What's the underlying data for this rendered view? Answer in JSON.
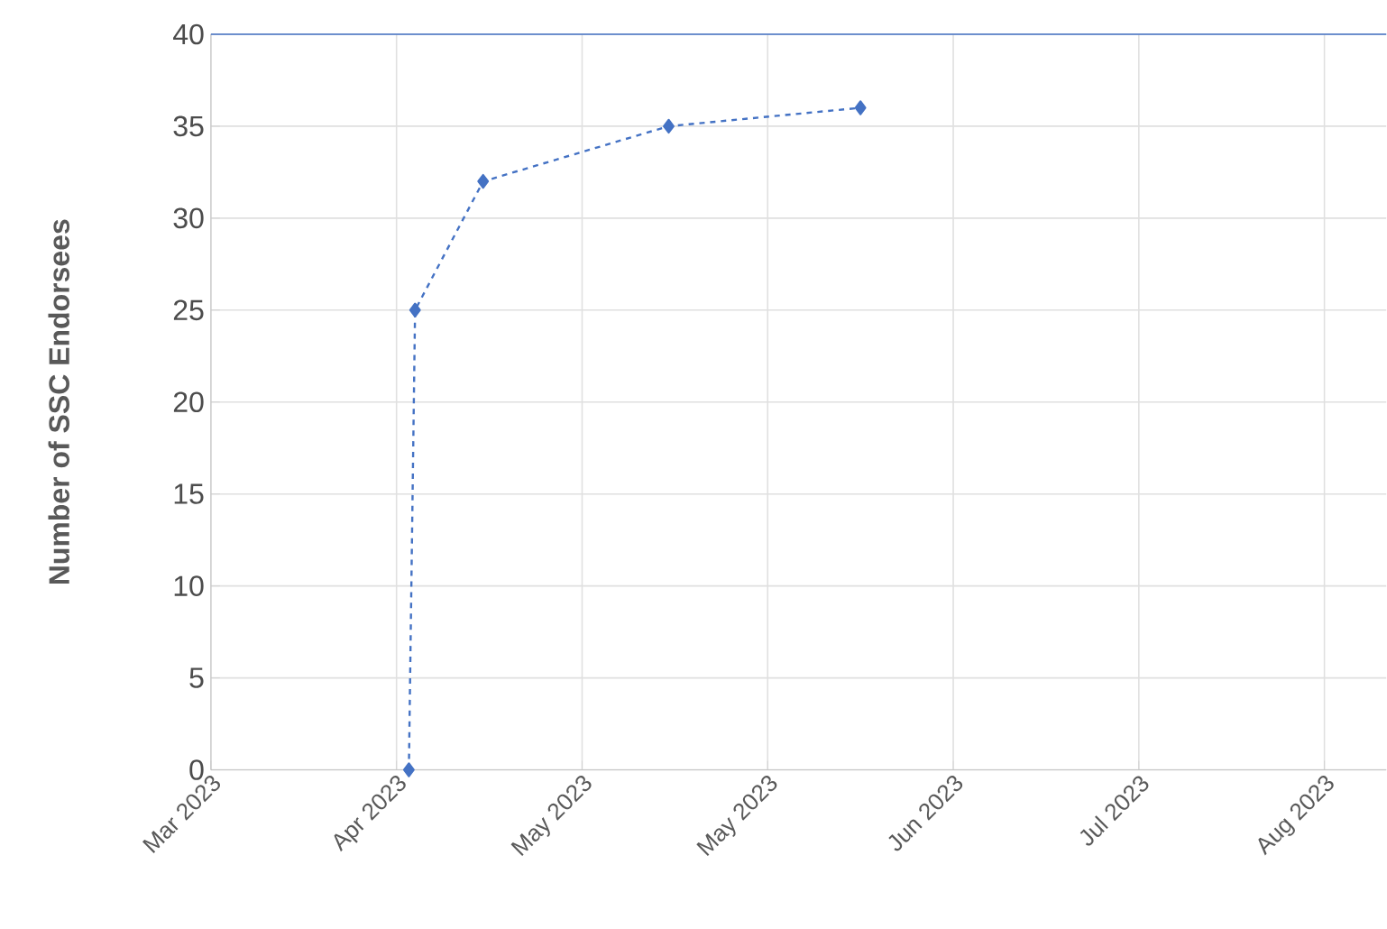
{
  "chart_data": {
    "type": "line",
    "ylabel": "Number of SSC Endorsees",
    "x": [
      "2023-04-03",
      "2023-04-04",
      "2023-04-15",
      "2023-05-15",
      "2023-06-15"
    ],
    "series": [
      {
        "color": "#4472c4",
        "values": [
          0,
          25,
          32,
          35,
          36
        ]
      }
    ],
    "xlim": [
      "2023-03-02",
      "2023-09-08"
    ],
    "xticks": [
      {
        "value": "2023-03-02",
        "label": "Mar 2023"
      },
      {
        "value": "2023-04-01",
        "label": "Apr 2023"
      },
      {
        "value": "2023-05-01",
        "label": "May 2023"
      },
      {
        "value": "2023-05-31",
        "label": "May 2023"
      },
      {
        "value": "2023-06-30",
        "label": "Jun 2023"
      },
      {
        "value": "2023-07-30",
        "label": "Jul 2023"
      },
      {
        "value": "2023-08-29",
        "label": "Aug 2023"
      }
    ],
    "ylim": [
      0,
      40
    ],
    "yticks": [
      0,
      5,
      10,
      15,
      20,
      25,
      30,
      35,
      40
    ],
    "ref_lines": [
      {
        "axis": "y",
        "value": 40,
        "color": "#4472c4"
      }
    ],
    "grid": true,
    "marker": "diamond",
    "line_style": "dashed"
  }
}
